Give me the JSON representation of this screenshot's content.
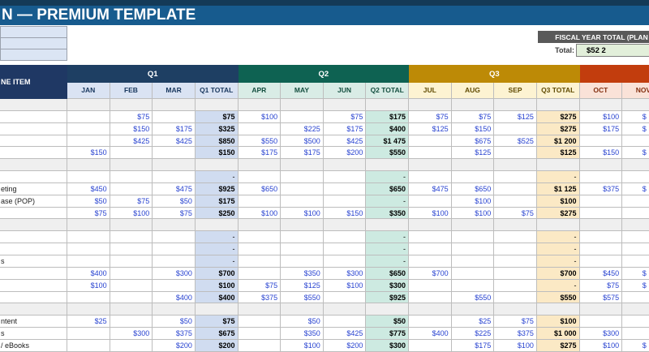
{
  "title": "N — PREMIUM TEMPLATE",
  "fiscal": {
    "header": "FISCAL YEAR TOTAL (PLAN",
    "total_label": "Total:",
    "total_value": "$52 2"
  },
  "colors": {
    "titleBar": "#175b8e",
    "titleStrip": "#143a57",
    "fiscalBar": "#595959",
    "navyHd": "#1f3864",
    "q1": "#1e3f63",
    "q2": "#0e6252",
    "q3": "#bd8a06",
    "q4": "#c23d0d",
    "m1": "#dae3f3",
    "m2": "#d9ece6",
    "m3": "#fdf3d2",
    "m4": "#fae2d8",
    "t1": "#d0dcf0",
    "t2": "#cdeae1",
    "t3": "#fbe9c5",
    "valBlue": "#2742d0",
    "grid": "#bdbdbd",
    "section": "#efefef"
  },
  "table": {
    "line_item_header": "NE ITEM",
    "quarters": [
      {
        "id": 1,
        "label": "Q1"
      },
      {
        "id": 2,
        "label": "Q2"
      },
      {
        "id": 3,
        "label": "Q3"
      },
      {
        "id": 4,
        "label": ""
      }
    ],
    "columns": [
      {
        "label": "JAN",
        "q": 1
      },
      {
        "label": "FEB",
        "q": 1
      },
      {
        "label": "MAR",
        "q": 1
      },
      {
        "label": "Q1 TOTAL",
        "q": 1,
        "total": true
      },
      {
        "label": "APR",
        "q": 2
      },
      {
        "label": "MAY",
        "q": 2
      },
      {
        "label": "JUN",
        "q": 2
      },
      {
        "label": "Q2 TOTAL",
        "q": 2,
        "total": true
      },
      {
        "label": "JUL",
        "q": 3
      },
      {
        "label": "AUG",
        "q": 3
      },
      {
        "label": "SEP",
        "q": 3
      },
      {
        "label": "Q3 TOTAL",
        "q": 3,
        "total": true
      },
      {
        "label": "OCT",
        "q": 4
      },
      {
        "label": "NOV",
        "q": 4
      }
    ],
    "rows": [
      {
        "label": "",
        "section": true,
        "cells": [
          "",
          "",
          "",
          "",
          "",
          "",
          "",
          "",
          "",
          "",
          "",
          "",
          "",
          ""
        ]
      },
      {
        "label": "",
        "section": false,
        "cells": [
          "",
          "$75",
          "",
          "$75",
          "$100",
          "",
          "$75",
          "$175",
          "$75",
          "$75",
          "$125",
          "$275",
          "$100",
          "$"
        ]
      },
      {
        "label": "",
        "section": false,
        "cells": [
          "",
          "$150",
          "$175",
          "$325",
          "",
          "$225",
          "$175",
          "$400",
          "$125",
          "$150",
          "",
          "$275",
          "$175",
          "$"
        ]
      },
      {
        "label": "",
        "section": false,
        "cells": [
          "",
          "$425",
          "$425",
          "$850",
          "$550",
          "$500",
          "$425",
          "$1 475",
          "",
          "$675",
          "$525",
          "$1 200",
          "",
          ""
        ]
      },
      {
        "label": "",
        "section": false,
        "cells": [
          "$150",
          "",
          "",
          "$150",
          "$175",
          "$175",
          "$200",
          "$550",
          "",
          "$125",
          "",
          "$125",
          "$150",
          "$"
        ]
      },
      {
        "label": "",
        "section": true,
        "cells": [
          "",
          "",
          "",
          "",
          "",
          "",
          "",
          "",
          "",
          "",
          "",
          "",
          "",
          ""
        ]
      },
      {
        "label": "",
        "section": false,
        "cells": [
          "",
          "",
          "",
          "-",
          "",
          "",
          "",
          "-",
          "",
          "",
          "",
          "-",
          "",
          ""
        ]
      },
      {
        "label": "eting",
        "section": false,
        "cells": [
          "$450",
          "",
          "$475",
          "$925",
          "$650",
          "",
          "",
          "$650",
          "$475",
          "$650",
          "",
          "$1 125",
          "$375",
          "$"
        ]
      },
      {
        "label": "ase (POP)",
        "section": false,
        "cells": [
          "$50",
          "$75",
          "$50",
          "$175",
          "",
          "",
          "",
          "-",
          "",
          "$100",
          "",
          "$100",
          "",
          ""
        ]
      },
      {
        "label": "",
        "section": false,
        "cells": [
          "$75",
          "$100",
          "$75",
          "$250",
          "$100",
          "$100",
          "$150",
          "$350",
          "$100",
          "$100",
          "$75",
          "$275",
          "",
          ""
        ]
      },
      {
        "label": "",
        "section": true,
        "cells": [
          "",
          "",
          "",
          "",
          "",
          "",
          "",
          "",
          "",
          "",
          "",
          "",
          "",
          ""
        ]
      },
      {
        "label": "",
        "section": false,
        "cells": [
          "",
          "",
          "",
          "-",
          "",
          "",
          "",
          "-",
          "",
          "",
          "",
          "-",
          "",
          ""
        ]
      },
      {
        "label": "",
        "section": false,
        "cells": [
          "",
          "",
          "",
          "-",
          "",
          "",
          "",
          "-",
          "",
          "",
          "",
          "-",
          "",
          ""
        ]
      },
      {
        "label": "s",
        "section": false,
        "cells": [
          "",
          "",
          "",
          "-",
          "",
          "",
          "",
          "-",
          "",
          "",
          "",
          "-",
          "",
          ""
        ]
      },
      {
        "label": "",
        "section": false,
        "cells": [
          "$400",
          "",
          "$300",
          "$700",
          "",
          "$350",
          "$300",
          "$650",
          "$700",
          "",
          "",
          "$700",
          "$450",
          "$"
        ]
      },
      {
        "label": "",
        "section": false,
        "cells": [
          "$100",
          "",
          "",
          "$100",
          "$75",
          "$125",
          "$100",
          "$300",
          "",
          "",
          "",
          "-",
          "$75",
          "$"
        ]
      },
      {
        "label": "",
        "section": false,
        "cells": [
          "",
          "",
          "$400",
          "$400",
          "$375",
          "$550",
          "",
          "$925",
          "",
          "$550",
          "",
          "$550",
          "$575",
          ""
        ]
      },
      {
        "label": "",
        "section": true,
        "cells": [
          "",
          "",
          "",
          "",
          "",
          "",
          "",
          "",
          "",
          "",
          "",
          "",
          "",
          ""
        ]
      },
      {
        "label": "ntent",
        "section": false,
        "cells": [
          "$25",
          "",
          "$50",
          "$75",
          "",
          "$50",
          "",
          "$50",
          "",
          "$25",
          "$75",
          "$100",
          "",
          ""
        ]
      },
      {
        "label": "s",
        "section": false,
        "cells": [
          "",
          "$300",
          "$375",
          "$675",
          "",
          "$350",
          "$425",
          "$775",
          "$400",
          "$225",
          "$375",
          "$1 000",
          "$300",
          ""
        ]
      },
      {
        "label": "/ eBooks",
        "section": false,
        "cells": [
          "",
          "",
          "$200",
          "$200",
          "",
          "$100",
          "$200",
          "$300",
          "",
          "$175",
          "$100",
          "$275",
          "$100",
          "$"
        ]
      }
    ]
  }
}
